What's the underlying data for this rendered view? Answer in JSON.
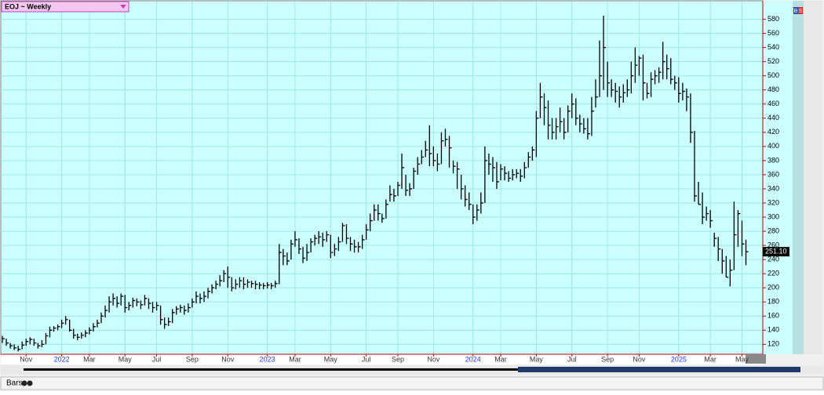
{
  "chart_data": {
    "type": "ohlc",
    "title": "EOJ ~ Weekly",
    "footer": "Bars",
    "buttons": [
      "B",
      "S"
    ],
    "categories": [
      null,
      null,
      null,
      null,
      null,
      null,
      "Nov",
      null,
      null,
      null,
      null,
      null,
      null,
      null,
      null,
      "2022",
      null,
      null,
      null,
      null,
      null,
      null,
      "Mar",
      null,
      null,
      null,
      null,
      null,
      null,
      null,
      null,
      "May",
      null,
      null,
      null,
      null,
      null,
      null,
      null,
      "Jul",
      null,
      null,
      null,
      null,
      null,
      null,
      null,
      null,
      "Sep",
      null,
      null,
      null,
      null,
      null,
      null,
      null,
      null,
      "Nov",
      null,
      null,
      null,
      null,
      null,
      null,
      null,
      null,
      null,
      "2023",
      null,
      null,
      null,
      null,
      null,
      null,
      "Mar",
      null,
      null,
      null,
      null,
      null,
      null,
      null,
      null,
      "May",
      null,
      null,
      null,
      null,
      null,
      null,
      null,
      null,
      "Jul",
      null,
      null,
      null,
      null,
      null,
      null,
      null,
      "Sep",
      null,
      null,
      null,
      null,
      null,
      null,
      null,
      null,
      "Nov",
      null,
      null,
      null,
      null,
      null,
      null,
      null,
      null,
      null,
      "2024",
      null,
      null,
      null,
      null,
      null,
      null,
      "Mar",
      null,
      null,
      null,
      null,
      null,
      null,
      null,
      null,
      "May",
      null,
      null,
      null,
      null,
      null,
      null,
      null,
      null,
      "Jul",
      null,
      null,
      null,
      null,
      null,
      null,
      null,
      null,
      "Sep",
      null,
      null,
      null,
      null,
      null,
      null,
      null,
      "Nov",
      null,
      null,
      null,
      null,
      null,
      null,
      null,
      null,
      null,
      "2025",
      null,
      null,
      null,
      null,
      null,
      null,
      null,
      "Mar",
      null,
      null,
      null,
      null,
      null,
      null,
      null,
      "May",
      null
    ],
    "high": [
      132,
      128,
      122,
      120,
      118,
      124,
      128,
      130,
      128,
      122,
      126,
      136,
      145,
      146,
      148,
      155,
      160,
      155,
      142,
      135,
      137,
      140,
      144,
      150,
      155,
      165,
      175,
      188,
      192,
      188,
      192,
      190,
      180,
      186,
      185,
      182,
      190,
      185,
      180,
      180,
      175,
      158,
      158,
      170,
      174,
      176,
      175,
      178,
      185,
      195,
      192,
      195,
      200,
      205,
      210,
      218,
      225,
      230,
      215,
      212,
      215,
      215,
      212,
      210,
      210,
      208,
      207,
      208,
      207,
      210,
      262,
      255,
      250,
      268,
      280,
      270,
      258,
      262,
      270,
      275,
      280,
      278,
      280,
      275,
      262,
      272,
      292,
      290,
      272,
      268,
      265,
      275,
      290,
      305,
      318,
      318,
      305,
      325,
      345,
      340,
      350,
      390,
      360,
      348,
      370,
      385,
      395,
      408,
      430,
      400,
      390,
      420,
      425,
      415,
      380,
      378,
      360,
      345,
      335,
      318,
      318,
      335,
      400,
      390,
      385,
      378,
      375,
      372,
      365,
      368,
      368,
      368,
      378,
      392,
      400,
      450,
      490,
      475,
      465,
      440,
      440,
      455,
      440,
      458,
      475,
      468,
      445,
      440,
      440,
      470,
      495,
      550,
      585,
      520,
      495,
      490,
      485,
      488,
      495,
      520,
      540,
      528,
      530,
      490,
      505,
      508,
      512,
      548,
      530,
      525,
      500,
      498,
      490,
      482,
      475,
      422,
      350,
      335,
      315,
      310,
      278,
      272,
      255,
      245,
      240,
      322,
      310,
      295,
      268
    ],
    "low": [
      122,
      118,
      114,
      112,
      110,
      113,
      118,
      120,
      118,
      114,
      116,
      120,
      130,
      138,
      140,
      143,
      148,
      138,
      128,
      126,
      128,
      130,
      134,
      138,
      144,
      150,
      158,
      165,
      175,
      172,
      175,
      165,
      168,
      172,
      174,
      170,
      175,
      170,
      165,
      168,
      148,
      142,
      146,
      150,
      162,
      165,
      162,
      165,
      172,
      178,
      178,
      180,
      185,
      192,
      198,
      202,
      208,
      200,
      195,
      198,
      200,
      198,
      200,
      200,
      198,
      198,
      198,
      199,
      198,
      200,
      205,
      232,
      232,
      240,
      258,
      248,
      235,
      238,
      250,
      260,
      262,
      258,
      265,
      242,
      245,
      252,
      265,
      262,
      252,
      250,
      250,
      255,
      268,
      280,
      295,
      295,
      292,
      298,
      322,
      322,
      330,
      340,
      330,
      330,
      340,
      360,
      375,
      385,
      372,
      372,
      365,
      375,
      400,
      370,
      362,
      340,
      325,
      315,
      310,
      290,
      295,
      305,
      320,
      360,
      350,
      340,
      352,
      352,
      350,
      352,
      355,
      350,
      355,
      370,
      380,
      385,
      440,
      430,
      410,
      410,
      410,
      420,
      410,
      420,
      440,
      430,
      420,
      418,
      410,
      415,
      455,
      470,
      480,
      470,
      470,
      462,
      455,
      462,
      470,
      475,
      490,
      500,
      465,
      468,
      470,
      488,
      490,
      495,
      495,
      488,
      480,
      462,
      465,
      450,
      405,
      322,
      318,
      290,
      295,
      285,
      258,
      238,
      220,
      215,
      202,
      225,
      258,
      245,
      232
    ],
    "close": [
      128,
      122,
      118,
      115,
      113,
      119,
      124,
      127,
      122,
      118,
      120,
      132,
      140,
      143,
      145,
      150,
      155,
      140,
      133,
      130,
      133,
      136,
      140,
      145,
      150,
      160,
      168,
      180,
      185,
      178,
      188,
      172,
      175,
      182,
      180,
      176,
      185,
      178,
      172,
      175,
      155,
      148,
      152,
      165,
      170,
      172,
      168,
      172,
      180,
      188,
      185,
      188,
      195,
      200,
      205,
      210,
      220,
      215,
      200,
      205,
      210,
      205,
      208,
      206,
      205,
      204,
      203,
      204,
      203,
      206,
      250,
      245,
      238,
      262,
      268,
      255,
      242,
      250,
      265,
      270,
      272,
      268,
      275,
      250,
      255,
      265,
      288,
      270,
      262,
      258,
      258,
      268,
      282,
      295,
      310,
      305,
      298,
      318,
      332,
      330,
      345,
      370,
      338,
      340,
      365,
      375,
      385,
      395,
      390,
      380,
      375,
      408,
      410,
      398,
      372,
      368,
      340,
      325,
      318,
      300,
      310,
      320,
      380,
      375,
      370,
      350,
      368,
      362,
      355,
      360,
      362,
      358,
      370,
      385,
      395,
      440,
      470,
      455,
      430,
      420,
      428,
      435,
      420,
      450,
      460,
      440,
      432,
      425,
      418,
      450,
      470,
      500,
      540,
      490,
      480,
      478,
      470,
      476,
      480,
      500,
      515,
      525,
      490,
      475,
      495,
      500,
      505,
      520,
      510,
      495,
      490,
      475,
      478,
      470,
      420,
      330,
      318,
      300,
      305,
      295,
      270,
      255,
      238,
      215,
      225,
      275,
      305,
      262,
      251.1
    ],
    "last_price": {
      "value": 251.1,
      "label": "251.10"
    },
    "color": "#000000",
    "ylim": [
      106,
      605
    ],
    "yticks": [
      120,
      140,
      160,
      180,
      200,
      220,
      240,
      260,
      280,
      300,
      320,
      340,
      360,
      380,
      400,
      420,
      440,
      460,
      480,
      500,
      520,
      540,
      560,
      580
    ],
    "grid": true
  }
}
